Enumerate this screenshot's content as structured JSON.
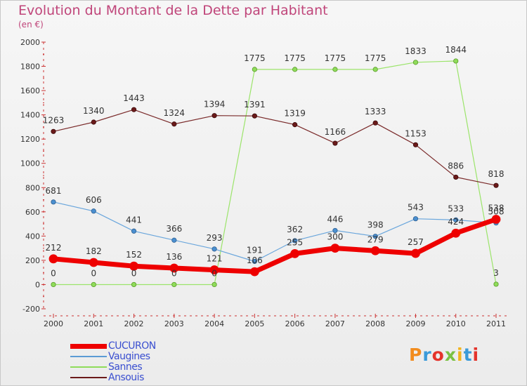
{
  "title": "Evolution du Montant de la Dette par Habitant",
  "subtitle": "(en €)",
  "logo_text": "Proxiti",
  "colors": {
    "title": "#c0457a",
    "CUCURON": "#ee0000",
    "Vaugines": "#5b9bd5",
    "Sannes": "#8fdc5a",
    "Ansouis": "#6b1a1a"
  },
  "chart_data": {
    "type": "line",
    "title": "Evolution du Montant de la Dette par Habitant",
    "subtitle": "(en €)",
    "xlabel": "",
    "ylabel": "",
    "categories": [
      "2000",
      "2001",
      "2002",
      "2003",
      "2004",
      "2005",
      "2006",
      "2007",
      "2008",
      "2009",
      "2010",
      "2011"
    ],
    "ylim": [
      -200,
      2000
    ],
    "yticks": [
      -200,
      0,
      200,
      400,
      600,
      800,
      1000,
      1200,
      1400,
      1600,
      1800,
      2000
    ],
    "grid": false,
    "legend": "bottom-left",
    "series": [
      {
        "name": "CUCURON",
        "values": [
          212,
          182,
          152,
          136,
          121,
          106,
          255,
          300,
          279,
          257,
          424,
          538
        ]
      },
      {
        "name": "Vaugines",
        "values": [
          681,
          606,
          441,
          366,
          293,
          191,
          362,
          446,
          398,
          543,
          533,
          508
        ]
      },
      {
        "name": "Sannes",
        "values": [
          0,
          0,
          0,
          0,
          0,
          1775,
          1775,
          1775,
          1775,
          1833,
          1844,
          3
        ]
      },
      {
        "name": "Ansouis",
        "values": [
          1263,
          1340,
          1443,
          1324,
          1394,
          1391,
          1319,
          1166,
          1333,
          1153,
          886,
          818
        ]
      }
    ]
  }
}
